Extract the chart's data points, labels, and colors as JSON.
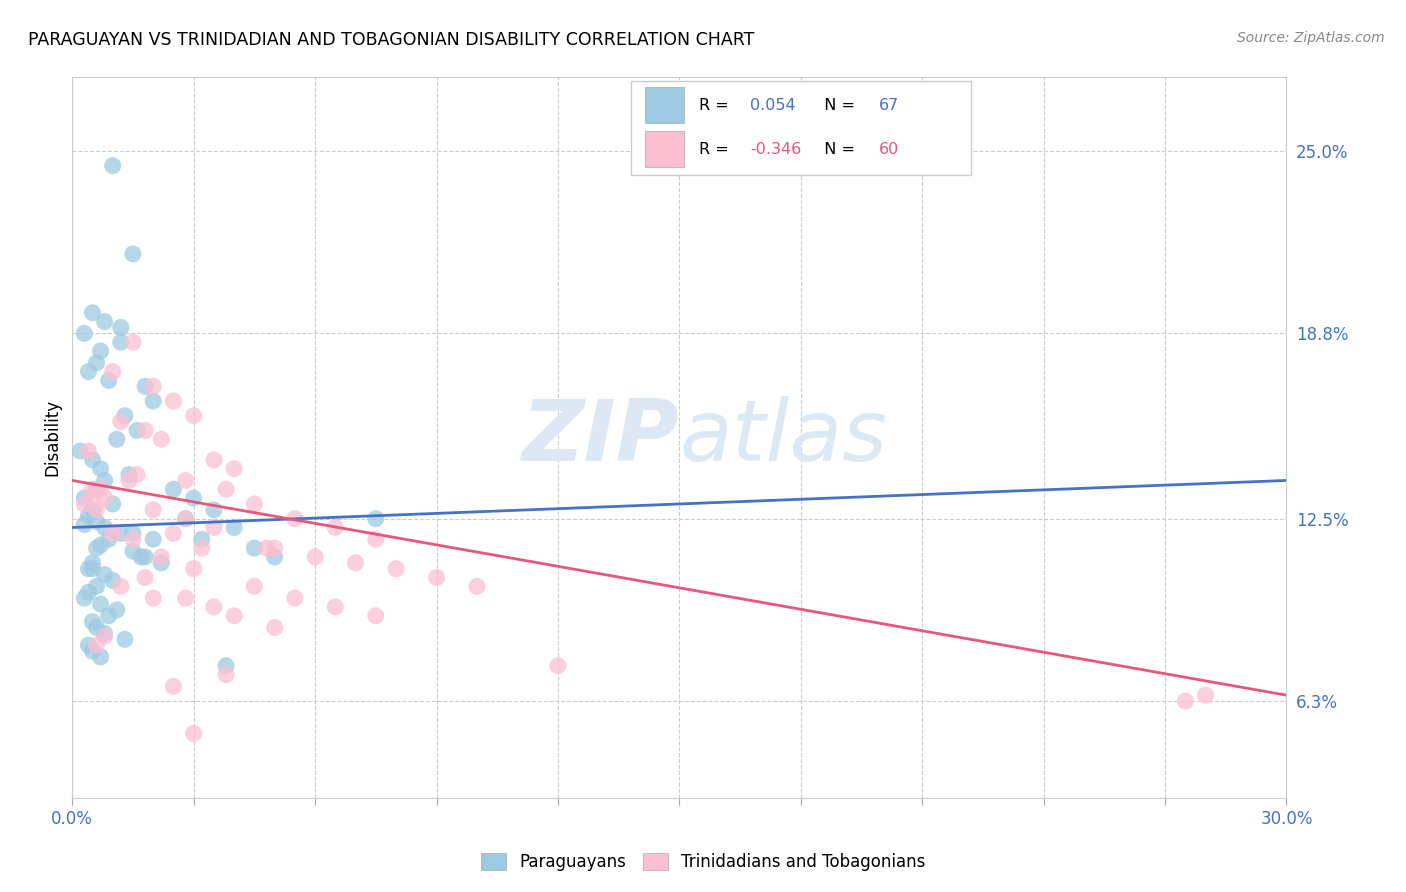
{
  "title": "PARAGUAYAN VS TRINIDADIAN AND TOBAGONIAN DISABILITY CORRELATION CHART",
  "source": "Source: ZipAtlas.com",
  "ylabel": "Disability",
  "ytick_labels": [
    "6.3%",
    "12.5%",
    "18.8%",
    "25.0%"
  ],
  "ytick_values": [
    6.3,
    12.5,
    18.8,
    25.0
  ],
  "xtick_values": [
    0.0,
    3.0,
    6.0,
    9.0,
    12.0,
    15.0,
    18.0,
    21.0,
    24.0,
    27.0,
    30.0
  ],
  "xmin": 0.0,
  "xmax": 30.0,
  "ymin": 3.0,
  "ymax": 27.5,
  "blue_color": "#9ecae1",
  "pink_color": "#fcbfd2",
  "line_blue": "#4472c4",
  "line_pink": "#e8567a",
  "right_label_color": "#4472c4",
  "watermark_color": "#dce9f5",
  "blue_line_start_y": 12.2,
  "blue_line_end_y": 13.8,
  "pink_line_start_y": 13.8,
  "pink_line_end_y": 6.5,
  "par_x": [
    1.0,
    1.5,
    0.5,
    0.8,
    0.3,
    1.2,
    0.7,
    0.6,
    0.4,
    0.9,
    1.8,
    2.0,
    1.3,
    1.6,
    1.1,
    0.2,
    0.5,
    0.7,
    1.4,
    0.8,
    0.6,
    0.3,
    1.0,
    0.5,
    0.4,
    0.6,
    0.8,
    1.2,
    0.9,
    0.7,
    1.5,
    1.7,
    2.2,
    0.5,
    0.8,
    1.0,
    0.6,
    0.4,
    0.3,
    0.7,
    1.1,
    0.9,
    0.5,
    0.6,
    0.8,
    1.3,
    0.4,
    0.5,
    0.7,
    2.5,
    3.0,
    3.5,
    2.8,
    4.0,
    3.2,
    4.5,
    5.0,
    1.5,
    0.5,
    0.6,
    0.4,
    1.8,
    2.0,
    3.8,
    7.5,
    1.2,
    0.3
  ],
  "par_y": [
    24.5,
    21.5,
    19.5,
    19.2,
    18.8,
    18.5,
    18.2,
    17.8,
    17.5,
    17.2,
    17.0,
    16.5,
    16.0,
    15.5,
    15.2,
    14.8,
    14.5,
    14.2,
    14.0,
    13.8,
    13.5,
    13.2,
    13.0,
    12.8,
    12.6,
    12.4,
    12.2,
    12.0,
    11.8,
    11.6,
    11.4,
    11.2,
    11.0,
    10.8,
    10.6,
    10.4,
    10.2,
    10.0,
    9.8,
    9.6,
    9.4,
    9.2,
    9.0,
    8.8,
    8.6,
    8.4,
    8.2,
    8.0,
    7.8,
    13.5,
    13.2,
    12.8,
    12.5,
    12.2,
    11.8,
    11.5,
    11.2,
    12.0,
    11.0,
    11.5,
    10.8,
    11.2,
    11.8,
    7.5,
    12.5,
    19.0,
    12.3
  ],
  "tri_x": [
    0.5,
    0.8,
    1.5,
    1.0,
    2.0,
    2.5,
    3.0,
    0.3,
    0.6,
    1.2,
    1.8,
    2.2,
    3.5,
    4.0,
    0.4,
    1.6,
    2.8,
    3.8,
    5.0,
    6.0,
    7.0,
    8.0,
    9.0,
    10.0,
    4.5,
    5.5,
    6.5,
    7.5,
    2.5,
    3.2,
    1.4,
    0.7,
    2.0,
    2.8,
    3.5,
    4.8,
    1.0,
    1.5,
    0.5,
    2.2,
    3.0,
    1.8,
    4.5,
    5.5,
    6.5,
    7.5,
    2.0,
    3.5,
    4.0,
    2.8,
    1.2,
    0.8,
    0.6,
    12.0,
    5.0,
    3.8,
    2.5,
    28.0,
    27.5,
    3.0
  ],
  "tri_y": [
    13.5,
    13.2,
    18.5,
    17.5,
    17.0,
    16.5,
    16.0,
    13.0,
    12.8,
    15.8,
    15.5,
    15.2,
    14.5,
    14.2,
    14.8,
    14.0,
    13.8,
    13.5,
    11.5,
    11.2,
    11.0,
    10.8,
    10.5,
    10.2,
    13.0,
    12.5,
    12.2,
    11.8,
    12.0,
    11.5,
    13.8,
    13.5,
    12.8,
    12.5,
    12.2,
    11.5,
    12.0,
    11.8,
    13.2,
    11.2,
    10.8,
    10.5,
    10.2,
    9.8,
    9.5,
    9.2,
    9.8,
    9.5,
    9.2,
    9.8,
    10.2,
    8.5,
    8.2,
    7.5,
    8.8,
    7.2,
    6.8,
    6.5,
    6.3,
    5.2
  ]
}
